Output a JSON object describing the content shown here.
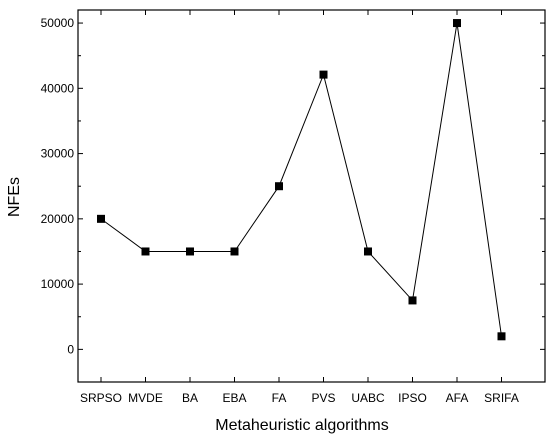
{
  "chart_data": {
    "type": "line",
    "title": "",
    "xlabel": "Metaheuristic algorithms",
    "ylabel": "NFEs",
    "categories": [
      "SRPSO",
      "MVDE",
      "BA",
      "EBA",
      "FA",
      "PVS",
      "UABC",
      "IPSO",
      "AFA",
      "SRIFA"
    ],
    "series": [
      {
        "values": [
          20000,
          15000,
          15000,
          15000,
          25000,
          42100,
          15000,
          7500,
          50000,
          2000
        ]
      }
    ],
    "yticks": [
      "0",
      "10000",
      "20000",
      "30000",
      "40000",
      "50000"
    ],
    "ylim": [
      -5000,
      52000
    ],
    "grid": false,
    "legend": "none",
    "marker": "square",
    "line_color": "#000000",
    "marker_color": "#000000"
  }
}
